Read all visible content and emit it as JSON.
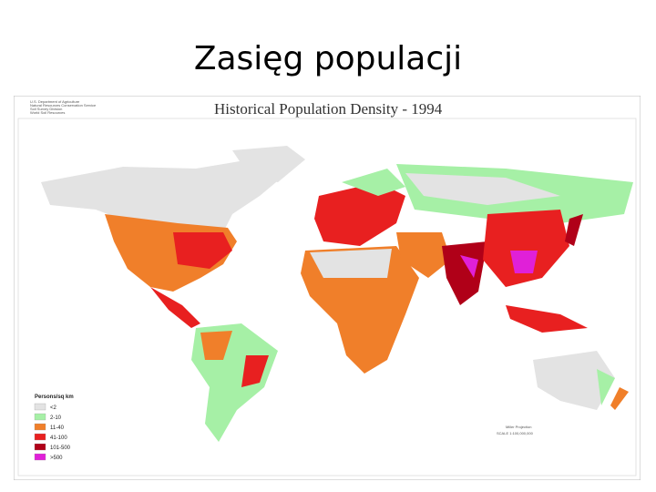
{
  "header": {
    "title": "Zasięg populacji"
  },
  "map": {
    "title": "Historical Population Density - 1994",
    "agency": [
      "U.S. Department of Agriculture",
      "Natural Resources Conservation Service",
      "Soil Survey Division",
      "World Soil Resources"
    ],
    "projection": "Miller Projection",
    "scale": "SCALE 1:100,000,000",
    "legend": {
      "title": "Persons/sq km",
      "items": [
        {
          "label": "<2",
          "color": "#e3e3e3"
        },
        {
          "label": "2-10",
          "color": "#a6f0a6"
        },
        {
          "label": "11-40",
          "color": "#f07f2a"
        },
        {
          "label": "41-100",
          "color": "#e82020"
        },
        {
          "label": "101-500",
          "color": "#b00018"
        },
        {
          "label": ">500",
          "color": "#e020d8"
        }
      ]
    }
  }
}
